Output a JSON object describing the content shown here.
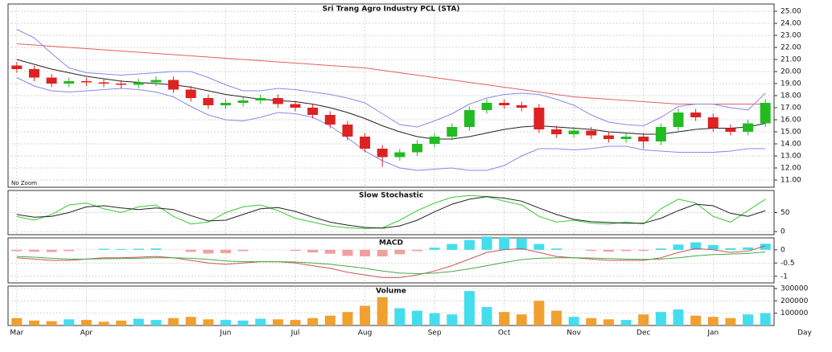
{
  "chart_data": [
    {
      "type": "candlestick",
      "title": "Sri Trang Agro Industry PCL (STA)",
      "annotation": "No Zoom",
      "open": [
        20.5,
        20.2,
        19.5,
        19.0,
        19.2,
        19.1,
        19.0,
        18.9,
        19.1,
        19.3,
        18.5,
        17.8,
        17.2,
        17.4,
        17.6,
        17.8,
        17.3,
        17.0,
        16.4,
        15.6,
        14.6,
        13.6,
        12.9,
        13.3,
        14.0,
        14.6,
        15.4,
        16.8,
        17.4,
        17.2,
        17.0,
        15.2,
        14.8,
        15.1,
        14.7,
        14.4,
        14.6,
        14.2,
        15.4,
        16.6,
        16.2,
        15.3,
        15.0,
        15.7
      ],
      "high": [
        20.8,
        20.5,
        19.8,
        19.5,
        19.5,
        19.4,
        19.3,
        19.4,
        19.6,
        19.6,
        18.8,
        18.1,
        17.7,
        17.9,
        18.1,
        18.1,
        17.6,
        17.3,
        16.7,
        15.9,
        14.9,
        13.9,
        13.6,
        14.3,
        14.9,
        15.7,
        17.1,
        17.7,
        17.7,
        17.5,
        17.3,
        15.5,
        15.4,
        15.4,
        15.0,
        14.9,
        14.9,
        15.7,
        16.9,
        16.9,
        16.5,
        15.6,
        16.0,
        17.7
      ],
      "low": [
        19.9,
        19.2,
        18.7,
        18.7,
        18.8,
        18.7,
        18.6,
        18.6,
        18.8,
        18.2,
        17.5,
        16.9,
        16.9,
        17.1,
        17.3,
        17.0,
        16.7,
        16.1,
        15.3,
        14.3,
        13.3,
        12.1,
        12.6,
        13.0,
        13.7,
        14.3,
        15.1,
        16.5,
        16.9,
        16.7,
        14.9,
        14.5,
        14.5,
        14.4,
        14.1,
        14.1,
        13.6,
        13.9,
        15.1,
        15.9,
        15.0,
        14.7,
        14.7,
        15.4
      ],
      "close": [
        20.2,
        19.5,
        19.0,
        19.2,
        19.1,
        19.0,
        18.9,
        19.1,
        19.3,
        18.5,
        17.8,
        17.2,
        17.4,
        17.6,
        17.8,
        17.3,
        17.0,
        16.4,
        15.6,
        14.6,
        13.6,
        12.9,
        13.3,
        14.0,
        14.6,
        15.4,
        16.8,
        17.4,
        17.2,
        17.0,
        15.2,
        14.8,
        15.1,
        14.7,
        14.4,
        14.6,
        14.2,
        15.4,
        16.6,
        16.2,
        15.3,
        15.0,
        15.7,
        17.4
      ],
      "up_color": "#22bb22",
      "down_color": "#dd2222",
      "series": [
        {
          "color": "#e06060",
          "values": [
            22.3,
            22.2,
            22.1,
            22.0,
            21.9,
            21.8,
            21.7,
            21.6,
            21.5,
            21.4,
            21.3,
            21.2,
            21.1,
            21.0,
            20.9,
            20.8,
            20.7,
            20.6,
            20.5,
            20.4,
            20.3,
            20.1,
            19.9,
            19.7,
            19.5,
            19.3,
            19.1,
            18.9,
            18.7,
            18.5,
            18.3,
            18.1,
            17.9,
            17.8,
            17.7,
            17.6,
            17.5,
            17.4,
            17.3,
            17.3,
            17.3,
            17.3,
            17.3,
            17.3
          ]
        },
        {
          "color": "#222222",
          "values": [
            21.0,
            20.6,
            20.2,
            19.9,
            19.6,
            19.4,
            19.2,
            19.1,
            19.0,
            18.9,
            18.7,
            18.4,
            18.1,
            17.9,
            17.7,
            17.6,
            17.5,
            17.3,
            17.0,
            16.6,
            16.1,
            15.5,
            15.0,
            14.6,
            14.4,
            14.4,
            14.6,
            14.9,
            15.2,
            15.4,
            15.5,
            15.4,
            15.3,
            15.2,
            15.0,
            14.9,
            14.8,
            14.8,
            15.0,
            15.2,
            15.3,
            15.3,
            15.4,
            15.7
          ]
        },
        {
          "color": "#8888ee",
          "values": [
            23.5,
            22.8,
            21.5,
            20.3,
            19.9,
            19.8,
            19.7,
            19.8,
            19.9,
            20.0,
            20.0,
            19.5,
            18.9,
            18.4,
            18.4,
            18.6,
            18.5,
            18.3,
            18.1,
            17.8,
            17.4,
            16.5,
            15.6,
            15.4,
            15.9,
            16.5,
            17.3,
            17.8,
            18.1,
            18.2,
            18.1,
            17.7,
            17.2,
            16.4,
            15.8,
            15.6,
            15.5,
            16.2,
            17.1,
            17.3,
            17.3,
            17.0,
            16.8,
            18.2
          ]
        },
        {
          "color": "#8888ee",
          "values": [
            19.5,
            18.8,
            18.4,
            18.3,
            18.4,
            18.5,
            18.6,
            18.5,
            18.3,
            17.9,
            17.1,
            16.4,
            16.0,
            15.9,
            16.2,
            16.6,
            16.5,
            16.2,
            15.5,
            14.5,
            13.4,
            12.6,
            12.0,
            11.8,
            11.9,
            12.0,
            11.8,
            11.8,
            12.2,
            13.0,
            13.6,
            13.6,
            13.5,
            13.6,
            13.8,
            13.8,
            13.5,
            13.4,
            13.3,
            13.3,
            13.3,
            13.4,
            13.6,
            13.6
          ]
        }
      ],
      "ylim": [
        10.4,
        25.6
      ],
      "yticks": [
        {
          "value": 11,
          "label": "11.00"
        },
        {
          "value": 12,
          "label": "12.00"
        },
        {
          "value": 13,
          "label": "13.00"
        },
        {
          "value": 14,
          "label": "14.00"
        },
        {
          "value": 15,
          "label": "15.00"
        },
        {
          "value": 16,
          "label": "16.00"
        },
        {
          "value": 17,
          "label": "17.00"
        },
        {
          "value": 18,
          "label": "18.00"
        },
        {
          "value": 19,
          "label": "19.00"
        },
        {
          "value": 20,
          "label": "20.00"
        },
        {
          "value": 21,
          "label": "21.00"
        },
        {
          "value": 22,
          "label": "22.00"
        },
        {
          "value": 23,
          "label": "23.00"
        },
        {
          "value": 24,
          "label": "24.00"
        },
        {
          "value": 25,
          "label": "25.00"
        }
      ],
      "grid": true
    },
    {
      "type": "line",
      "title": "Slow Stochastic",
      "series": [
        {
          "color": "#33cc33",
          "values": [
            40,
            30,
            45,
            70,
            75,
            60,
            50,
            65,
            70,
            40,
            20,
            25,
            50,
            65,
            70,
            55,
            35,
            25,
            15,
            10,
            8,
            10,
            30,
            55,
            75,
            90,
            95,
            92,
            80,
            70,
            40,
            25,
            30,
            22,
            20,
            25,
            20,
            60,
            85,
            75,
            40,
            25,
            55,
            85
          ]
        },
        {
          "color": "#222222",
          "values": [
            45,
            38,
            40,
            50,
            65,
            68,
            62,
            58,
            62,
            58,
            42,
            28,
            30,
            45,
            60,
            63,
            53,
            38,
            25,
            17,
            11,
            9,
            15,
            30,
            52,
            72,
            85,
            92,
            88,
            80,
            62,
            45,
            32,
            26,
            24,
            22,
            22,
            35,
            55,
            72,
            68,
            48,
            40,
            55
          ]
        }
      ],
      "ylim": [
        -8,
        108
      ],
      "yticks": [
        0,
        50
      ],
      "grid": true
    },
    {
      "type": "macd",
      "title": "MACD",
      "series": [
        {
          "color": "#cc5555",
          "values": [
            -0.3,
            -0.35,
            -0.4,
            -0.4,
            -0.35,
            -0.3,
            -0.3,
            -0.28,
            -0.25,
            -0.3,
            -0.4,
            -0.5,
            -0.55,
            -0.5,
            -0.45,
            -0.45,
            -0.5,
            -0.6,
            -0.7,
            -0.85,
            -0.95,
            -1.05,
            -1.05,
            -0.95,
            -0.8,
            -0.6,
            -0.35,
            -0.1,
            0.0,
            0.05,
            -0.1,
            -0.25,
            -0.3,
            -0.35,
            -0.4,
            -0.4,
            -0.4,
            -0.3,
            -0.1,
            0.05,
            0.0,
            -0.1,
            -0.05,
            0.15
          ]
        },
        {
          "color": "#44aa44",
          "values": [
            -0.25,
            -0.28,
            -0.32,
            -0.35,
            -0.35,
            -0.34,
            -0.33,
            -0.32,
            -0.3,
            -0.3,
            -0.32,
            -0.36,
            -0.42,
            -0.45,
            -0.45,
            -0.45,
            -0.46,
            -0.5,
            -0.55,
            -0.62,
            -0.7,
            -0.8,
            -0.88,
            -0.9,
            -0.88,
            -0.82,
            -0.72,
            -0.6,
            -0.48,
            -0.37,
            -0.32,
            -0.3,
            -0.3,
            -0.31,
            -0.33,
            -0.35,
            -0.36,
            -0.35,
            -0.3,
            -0.23,
            -0.18,
            -0.16,
            -0.14,
            -0.08
          ]
        }
      ],
      "histogram": [
        -0.05,
        -0.07,
        -0.08,
        -0.05,
        0,
        0.04,
        0.03,
        0.04,
        0.05,
        0,
        -0.08,
        -0.14,
        -0.13,
        -0.05,
        0,
        0,
        -0.04,
        -0.1,
        -0.15,
        -0.23,
        -0.25,
        -0.25,
        -0.17,
        -0.05,
        0.08,
        0.22,
        0.37,
        0.5,
        0.48,
        0.42,
        0.22,
        0.05,
        0,
        -0.04,
        -0.07,
        -0.05,
        -0.04,
        0.05,
        0.2,
        0.28,
        0.18,
        0.06,
        0.09,
        0.23
      ],
      "up_color": "#44ddee",
      "down_color": "#f0a0a0",
      "ylim": [
        -1.25,
        0.45
      ],
      "yticks": [
        -1,
        -0.5,
        0
      ],
      "grid": true
    },
    {
      "type": "volume",
      "title": "Volume",
      "x_label": "Day",
      "categories": [
        "Mar",
        null,
        null,
        null,
        "Apr",
        null,
        null,
        null,
        null,
        null,
        null,
        null,
        "Jun",
        null,
        null,
        null,
        "Jul",
        null,
        null,
        null,
        "Aug",
        null,
        null,
        null,
        "Sep",
        null,
        null,
        null,
        "Oct",
        null,
        null,
        null,
        "Nov",
        null,
        null,
        null,
        "Dec",
        null,
        null,
        null,
        "Jan",
        null,
        null,
        null
      ],
      "values": [
        60000,
        40000,
        35000,
        50000,
        45000,
        30000,
        40000,
        55000,
        45000,
        60000,
        70000,
        50000,
        45000,
        40000,
        55000,
        50000,
        45000,
        60000,
        80000,
        110000,
        160000,
        230000,
        140000,
        120000,
        100000,
        90000,
        280000,
        150000,
        110000,
        90000,
        200000,
        120000,
        70000,
        60000,
        50000,
        45000,
        90000,
        110000,
        130000,
        80000,
        70000,
        60000,
        90000,
        100000
      ],
      "up_color": "#44ddee",
      "down_color": "#f0a030",
      "ylim": [
        0,
        320000
      ],
      "yticks": [
        100000,
        200000,
        300000
      ],
      "grid": true
    }
  ]
}
